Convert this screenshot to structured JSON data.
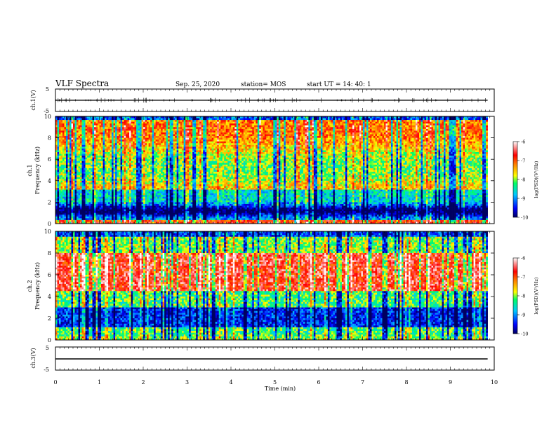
{
  "header": {
    "title": "VLF Spectra",
    "date": "Sep. 25, 2020",
    "station": "station= MOS",
    "start": "start  UT =   14: 40: 1"
  },
  "chart_data": [
    {
      "type": "line",
      "panel": "ch1-waveform",
      "ylabel": "ch.1(V)",
      "ylim": [
        -5,
        5
      ],
      "yticks": [
        "5",
        "-5"
      ],
      "xlim": [
        0,
        10
      ],
      "series": [
        {
          "x": [
            0,
            9.85
          ],
          "y": [
            0,
            0
          ]
        }
      ]
    },
    {
      "type": "heatmap",
      "panel": "ch1-spectrogram",
      "ylabel_line1": "ch.1",
      "ylabel_line2": "Frequency (kHz)",
      "ylim": [
        0,
        10
      ],
      "yticks": [
        "0",
        "2",
        "4",
        "6",
        "8",
        "10"
      ],
      "xlim": [
        0,
        10
      ],
      "data_extent_x": [
        0,
        9.85
      ],
      "colorbar": {
        "label": "log(PSD)(V²/Hz)",
        "range": [
          -10,
          -6
        ],
        "ticks": [
          "-6",
          "-7",
          "-8",
          "-9",
          "-10"
        ]
      }
    },
    {
      "type": "heatmap",
      "panel": "ch2-spectrogram",
      "ylabel_line1": "ch.2",
      "ylabel_line2": "Frequency (kHz)",
      "ylim": [
        0,
        10
      ],
      "yticks": [
        "0",
        "2",
        "4",
        "6",
        "8",
        "10"
      ],
      "xlim": [
        0,
        10
      ],
      "data_extent_x": [
        0,
        9.85
      ],
      "colorbar": {
        "label": "log(PSD)(V²/Hz)",
        "range": [
          -10,
          -6
        ],
        "ticks": [
          "-6",
          "-7",
          "-8",
          "-9",
          "-10"
        ]
      }
    },
    {
      "type": "line",
      "panel": "ch3-waveform",
      "ylabel": "ch.3(V)",
      "ylim": [
        -5,
        5
      ],
      "yticks": [
        "5",
        "-5"
      ],
      "xlim": [
        0,
        10
      ],
      "series": [
        {
          "x": [
            0,
            9.85
          ],
          "y": [
            0,
            0
          ]
        }
      ]
    }
  ],
  "xaxis": {
    "label": "Time  (min)",
    "ticks": [
      "0",
      "1",
      "2",
      "3",
      "4",
      "5",
      "6",
      "7",
      "8",
      "9",
      "10"
    ]
  }
}
